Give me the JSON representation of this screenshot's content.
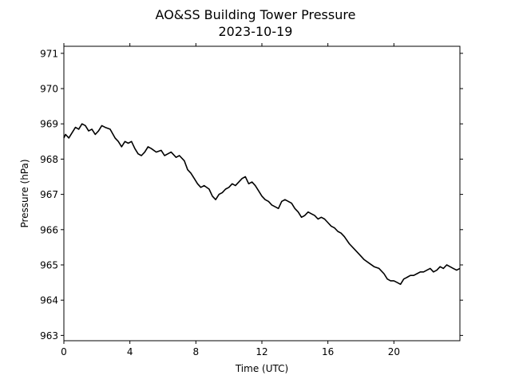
{
  "chart_data": {
    "type": "line",
    "title": "AO&SS Building Tower Pressure",
    "subtitle": "2023-10-19",
    "xlabel": "Time (UTC)",
    "ylabel": "Pressure (hPa)",
    "xlim": [
      0,
      24
    ],
    "ylim": [
      962.85,
      971.2
    ],
    "x_ticks": [
      0,
      4,
      8,
      12,
      16,
      20
    ],
    "x_tick_labels": [
      "0",
      "4",
      "8",
      "12",
      "16",
      "20"
    ],
    "y_ticks": [
      963,
      964,
      965,
      966,
      967,
      968,
      969,
      970,
      971
    ],
    "y_tick_labels": [
      "963",
      "964",
      "965",
      "966",
      "967",
      "968",
      "969",
      "970",
      "971"
    ],
    "grid": false,
    "line_color": "#000000",
    "series": [
      {
        "x": [
          0,
          0.1,
          0.3,
          0.5,
          0.7,
          0.9,
          1.1,
          1.3,
          1.5,
          1.7,
          1.9,
          2.1,
          2.3,
          2.5,
          2.8,
          3.1,
          3.3,
          3.5,
          3.7,
          3.9,
          4.1,
          4.3,
          4.5,
          4.7,
          4.9,
          5.1,
          5.3,
          5.6,
          5.9,
          6.1,
          6.3,
          6.5,
          6.8,
          7.0,
          7.3,
          7.5,
          7.7,
          7.9,
          8.1,
          8.3,
          8.5,
          8.8,
          9.0,
          9.2,
          9.4,
          9.6,
          9.8,
          10.0,
          10.2,
          10.4,
          10.6,
          10.8,
          11.0,
          11.2,
          11.4,
          11.6,
          11.8,
          12.0,
          12.2,
          12.4,
          12.6,
          12.8,
          13.0,
          13.2,
          13.4,
          13.6,
          13.8,
          14.0,
          14.2,
          14.4,
          14.6,
          14.8,
          15.0,
          15.2,
          15.4,
          15.6,
          15.8,
          16.0,
          16.2,
          16.4,
          16.6,
          16.8,
          17.0,
          17.3,
          17.6,
          17.9,
          18.2,
          18.5,
          18.8,
          19.1,
          19.4,
          19.6,
          19.8,
          20.0,
          20.2,
          20.4,
          20.6,
          20.8,
          21.0,
          21.2,
          21.4,
          21.6,
          21.8,
          22.0,
          22.2,
          22.4,
          22.6,
          22.8,
          23.0,
          23.2,
          23.4,
          23.6,
          23.8,
          24.0
        ],
        "y": [
          968.6,
          968.7,
          968.6,
          968.75,
          968.9,
          968.85,
          969.0,
          968.95,
          968.8,
          968.85,
          968.7,
          968.8,
          968.95,
          968.9,
          968.85,
          968.6,
          968.5,
          968.35,
          968.5,
          968.45,
          968.5,
          968.3,
          968.15,
          968.1,
          968.2,
          968.35,
          968.3,
          968.2,
          968.25,
          968.1,
          968.15,
          968.2,
          968.05,
          968.1,
          967.95,
          967.7,
          967.6,
          967.45,
          967.3,
          967.2,
          967.25,
          967.15,
          966.95,
          966.85,
          967.0,
          967.05,
          967.15,
          967.2,
          967.3,
          967.25,
          967.35,
          967.45,
          967.5,
          967.3,
          967.35,
          967.25,
          967.1,
          966.95,
          966.85,
          966.8,
          966.7,
          966.65,
          966.6,
          966.8,
          966.85,
          966.8,
          966.75,
          966.6,
          966.5,
          966.35,
          966.4,
          966.5,
          966.45,
          966.4,
          966.3,
          966.35,
          966.3,
          966.2,
          966.1,
          966.05,
          965.95,
          965.9,
          965.8,
          965.6,
          965.45,
          965.3,
          965.15,
          965.05,
          964.95,
          964.9,
          964.75,
          964.6,
          964.55,
          964.55,
          964.5,
          964.45,
          964.6,
          964.65,
          964.7,
          964.7,
          964.75,
          964.8,
          964.8,
          964.85,
          964.9,
          964.8,
          964.85,
          964.95,
          964.9,
          965.0,
          964.95,
          964.9,
          964.85,
          964.9
        ]
      }
    ]
  }
}
